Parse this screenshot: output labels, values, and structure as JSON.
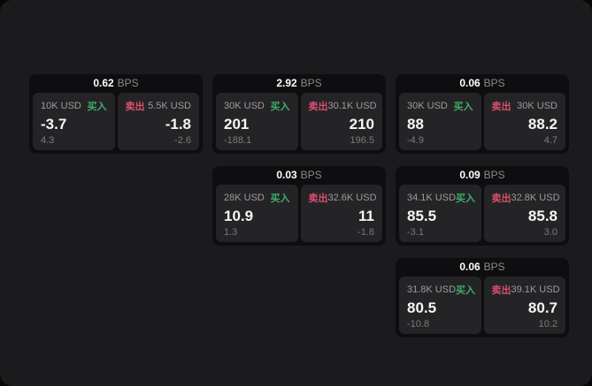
{
  "labels": {
    "bps_unit": "BPS",
    "buy": "买入",
    "sell": "卖出"
  },
  "colors": {
    "page_bg": "#1b1b1d",
    "card_bg": "#0e0e10",
    "panel_bg": "#242427",
    "buy_green": "#3fad6b",
    "sell_red": "#d8506d",
    "primary_text": "#f5f5f5",
    "secondary_text": "#9c9c9c",
    "muted_text": "#7a7a7a"
  },
  "cards": [
    {
      "bps": "0.62",
      "buy": {
        "amount": "10K USD",
        "value": "-3.7",
        "sub": "4.3"
      },
      "sell": {
        "amount": "5.5K USD",
        "value": "-1.8",
        "sub": "-2.6"
      }
    },
    {
      "bps": "2.92",
      "buy": {
        "amount": "30K USD",
        "value": "201",
        "sub": "-188.1"
      },
      "sell": {
        "amount": "30.1K USD",
        "value": "210",
        "sub": "196.5"
      }
    },
    {
      "bps": "0.06",
      "buy": {
        "amount": "30K USD",
        "value": "88",
        "sub": "-4.9"
      },
      "sell": {
        "amount": "30K USD",
        "value": "88.2",
        "sub": "4.7"
      }
    },
    {
      "bps": "0.03",
      "buy": {
        "amount": "28K USD",
        "value": "10.9",
        "sub": "1.3"
      },
      "sell": {
        "amount": "32.6K USD",
        "value": "11",
        "sub": "-1.8"
      }
    },
    {
      "bps": "0.09",
      "buy": {
        "amount": "34.1K USD",
        "value": "85.5",
        "sub": "-3.1"
      },
      "sell": {
        "amount": "32.8K USD",
        "value": "85.8",
        "sub": "3.0"
      }
    },
    {
      "bps": "0.06",
      "buy": {
        "amount": "31.8K USD",
        "value": "80.5",
        "sub": "-10.8"
      },
      "sell": {
        "amount": "39.1K USD",
        "value": "80.7",
        "sub": "10.2"
      }
    }
  ]
}
